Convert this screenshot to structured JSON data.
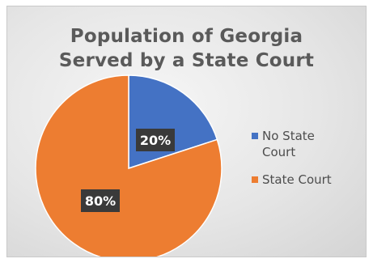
{
  "chart_data": {
    "type": "pie",
    "title": "Population of Georgia Served by a State Court",
    "title_lines": [
      "Population of Georgia",
      "Served by a State Court"
    ],
    "slices": [
      {
        "label": "No State Court",
        "value": 20,
        "display": "20%",
        "color": "#4472c4"
      },
      {
        "label": "State Court",
        "value": 80,
        "display": "80%",
        "color": "#ed7d31"
      }
    ],
    "start_angle_deg": 0,
    "direction": "clockwise",
    "legend_position": "right",
    "data_label_style": "dark-box-white-text"
  }
}
